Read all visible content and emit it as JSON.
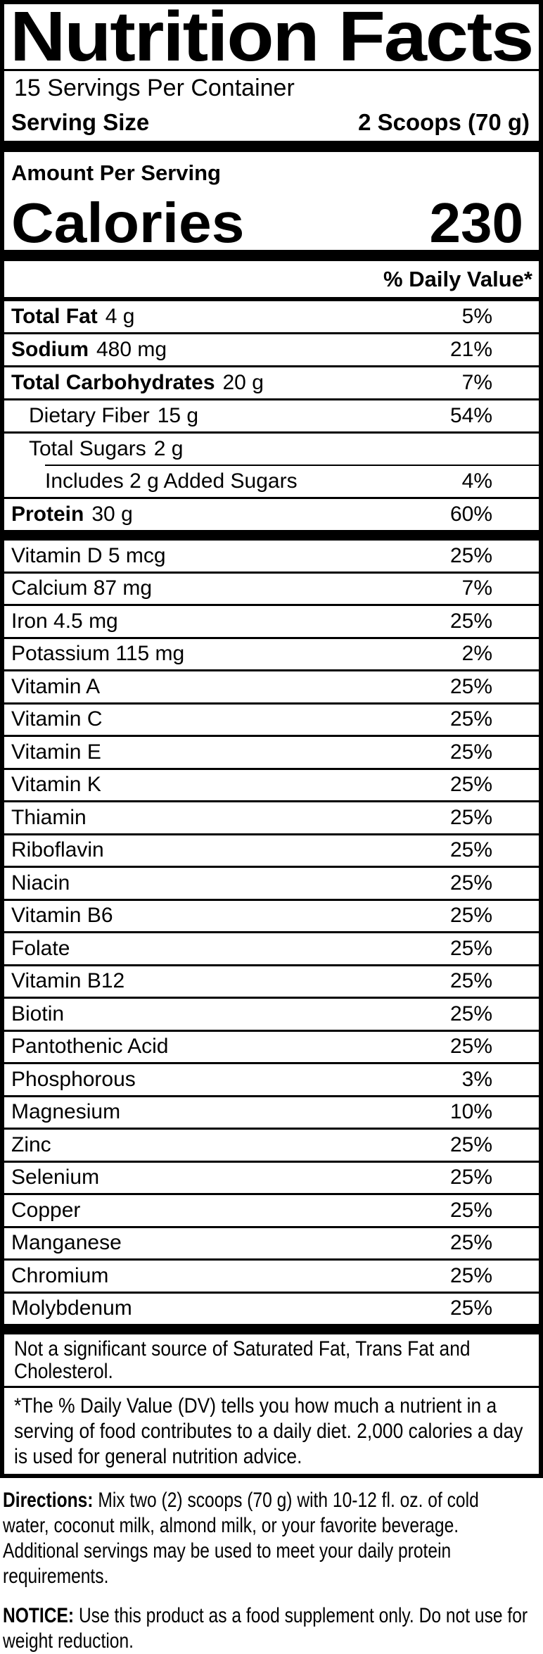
{
  "label": {
    "title": "Nutrition Facts",
    "servings_per_container": "15 Servings Per Container",
    "serving_size_label": "Serving Size",
    "serving_size_value": "2 Scoops (70 g)",
    "amount_per_serving": "Amount Per Serving",
    "calories_label": "Calories",
    "calories_value": "230",
    "daily_value_header": "% Daily Value*",
    "macronutrients": [
      {
        "name": "Total Fat",
        "amount": "4 g",
        "dv": "5%",
        "bold": true,
        "indent": 0,
        "rule": "none"
      },
      {
        "name": "Sodium",
        "amount": "480 mg",
        "dv": "21%",
        "bold": true,
        "indent": 0,
        "rule": "full"
      },
      {
        "name": "Total Carbohydrates",
        "amount": "20 g",
        "dv": "7%",
        "bold": true,
        "indent": 0,
        "rule": "full"
      },
      {
        "name": "Dietary Fiber",
        "amount": "15 g",
        "dv": "54%",
        "bold": false,
        "indent": 1,
        "rule": "full"
      },
      {
        "name": "Total Sugars",
        "amount": "2 g",
        "dv": "",
        "bold": false,
        "indent": 1,
        "rule": "full"
      },
      {
        "name": "Includes 2 g Added Sugars",
        "amount": "",
        "dv": "4%",
        "bold": false,
        "indent": 2,
        "rule": "partial"
      },
      {
        "name": "Protein",
        "amount": "30 g",
        "dv": "60%",
        "bold": true,
        "indent": 0,
        "rule": "full"
      }
    ],
    "micronutrients": [
      {
        "name": "Vitamin D 5 mcg",
        "dv": "25%"
      },
      {
        "name": "Calcium 87 mg",
        "dv": "7%"
      },
      {
        "name": "Iron 4.5 mg",
        "dv": "25%"
      },
      {
        "name": "Potassium 115 mg",
        "dv": "2%"
      },
      {
        "name": "Vitamin A",
        "dv": "25%"
      },
      {
        "name": "Vitamin C",
        "dv": "25%"
      },
      {
        "name": "Vitamin E",
        "dv": "25%"
      },
      {
        "name": "Vitamin K",
        "dv": "25%"
      },
      {
        "name": "Thiamin",
        "dv": "25%"
      },
      {
        "name": "Riboflavin",
        "dv": "25%"
      },
      {
        "name": "Niacin",
        "dv": "25%"
      },
      {
        "name": "Vitamin B6",
        "dv": "25%"
      },
      {
        "name": "Folate",
        "dv": "25%"
      },
      {
        "name": "Vitamin B12",
        "dv": "25%"
      },
      {
        "name": "Biotin",
        "dv": "25%"
      },
      {
        "name": "Pantothenic Acid",
        "dv": "25%"
      },
      {
        "name": "Phosphorous",
        "dv": "3%"
      },
      {
        "name": "Magnesium",
        "dv": "10%"
      },
      {
        "name": "Zinc",
        "dv": "25%"
      },
      {
        "name": "Selenium",
        "dv": "25%"
      },
      {
        "name": "Copper",
        "dv": "25%"
      },
      {
        "name": "Manganese",
        "dv": "25%"
      },
      {
        "name": "Chromium",
        "dv": "25%"
      },
      {
        "name": "Molybdenum",
        "dv": "25%"
      }
    ],
    "not_significant_text": "Not a significant source of Saturated Fat, Trans Fat and Cholesterol.",
    "footnote_text": "*The % Daily Value (DV) tells you how much a nutrient in a serving of food contributes to a daily diet. 2,000 calories a day is used for general nutrition advice."
  },
  "below": {
    "directions_label": "Directions:",
    "directions_text": " Mix two (2) scoops (70 g) with 10-12 fl. oz. of cold water, coconut milk, almond milk, or your favorite beverage. Additional servings may be used to meet your daily protein requirements.",
    "notice_label": "NOTICE:",
    "notice_text": " Use this product as a food supplement only. Do not use for weight reduction."
  },
  "colors": {
    "foreground": "#000000",
    "background": "#ffffff"
  }
}
